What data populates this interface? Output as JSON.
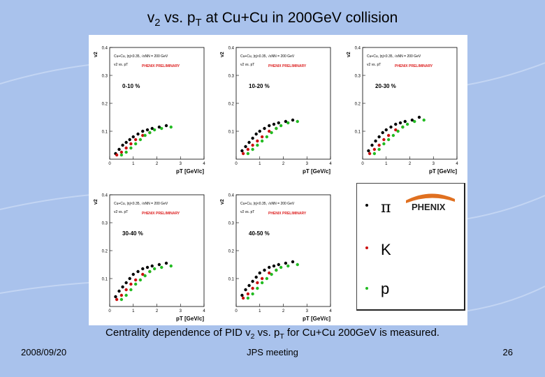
{
  "slide": {
    "title_main": "v",
    "title_sub": "2",
    "title_mid": " vs. p",
    "title_sub2": "T",
    "title_end": " at Cu+Cu in 200GeV collision",
    "caption_a": "Centrality dependence of PID v",
    "caption_sub1": "2",
    "caption_b": " vs. p",
    "caption_sub2": "T",
    "caption_c": " for Cu+Cu 200GeV is measured.",
    "date": "2008/09/20",
    "event": "JPS meeting",
    "page": "26"
  },
  "colors": {
    "pion": "#000000",
    "kaon": "#cc1111",
    "proton": "#22bb22",
    "prelim": "#dd2222"
  },
  "legend": {
    "logo": "PHENIX",
    "items": [
      {
        "label": "π",
        "color": "#000000"
      },
      {
        "label": "K",
        "color": "#cc1111"
      },
      {
        "label": "p",
        "color": "#22bb22"
      }
    ]
  },
  "plot_text": {
    "ylabel": "v2",
    "xlabel": "pT [GeV/c]",
    "line1": "Cu+Cu, |η|<0.35, √sNN = 200 GeV",
    "line2": "v2 vs. pT",
    "prelim": "PHENIX PRELIMINARY",
    "yticks": [
      "0.1",
      "0.2",
      "0.3",
      "0.4"
    ],
    "xticks": [
      "0",
      "1",
      "2",
      "3",
      "4"
    ]
  },
  "chart_data": [
    {
      "type": "scatter",
      "title": "0-10 %",
      "xlabel": "pT [GeV/c]",
      "ylabel": "v2",
      "xlim": [
        0,
        4
      ],
      "ylim": [
        0,
        0.4
      ],
      "series": [
        {
          "name": "π",
          "x": [
            0.25,
            0.4,
            0.55,
            0.7,
            0.85,
            1.0,
            1.2,
            1.4,
            1.6,
            1.8,
            2.1,
            2.4
          ],
          "y": [
            0.02,
            0.035,
            0.05,
            0.06,
            0.07,
            0.08,
            0.09,
            0.1,
            0.105,
            0.11,
            0.115,
            0.12
          ]
        },
        {
          "name": "K",
          "x": [
            0.3,
            0.5,
            0.7,
            0.9,
            1.1,
            1.4,
            1.7
          ],
          "y": [
            0.015,
            0.025,
            0.04,
            0.055,
            0.07,
            0.085,
            0.095
          ]
        },
        {
          "name": "p",
          "x": [
            0.5,
            0.7,
            0.9,
            1.1,
            1.3,
            1.5,
            1.7,
            1.9,
            2.2,
            2.6
          ],
          "y": [
            0.015,
            0.025,
            0.04,
            0.055,
            0.07,
            0.085,
            0.095,
            0.105,
            0.11,
            0.115
          ]
        }
      ]
    },
    {
      "type": "scatter",
      "title": "10-20 %",
      "xlabel": "pT [GeV/c]",
      "ylabel": "v2",
      "xlim": [
        0,
        4
      ],
      "ylim": [
        0,
        0.4
      ],
      "series": [
        {
          "name": "π",
          "x": [
            0.25,
            0.4,
            0.55,
            0.7,
            0.85,
            1.0,
            1.2,
            1.4,
            1.6,
            1.8,
            2.1,
            2.4
          ],
          "y": [
            0.03,
            0.045,
            0.06,
            0.075,
            0.09,
            0.1,
            0.11,
            0.12,
            0.125,
            0.13,
            0.135,
            0.14
          ]
        },
        {
          "name": "K",
          "x": [
            0.3,
            0.5,
            0.7,
            0.9,
            1.1,
            1.4,
            1.7
          ],
          "y": [
            0.02,
            0.035,
            0.05,
            0.065,
            0.08,
            0.1,
            0.11
          ]
        },
        {
          "name": "p",
          "x": [
            0.5,
            0.7,
            0.9,
            1.1,
            1.3,
            1.5,
            1.7,
            1.9,
            2.2,
            2.6
          ],
          "y": [
            0.02,
            0.035,
            0.05,
            0.065,
            0.08,
            0.095,
            0.11,
            0.12,
            0.13,
            0.135
          ]
        }
      ]
    },
    {
      "type": "scatter",
      "title": "20-30 %",
      "xlabel": "pT [GeV/c]",
      "ylabel": "v2",
      "xlim": [
        0,
        4
      ],
      "ylim": [
        0,
        0.4
      ],
      "series": [
        {
          "name": "π",
          "x": [
            0.25,
            0.4,
            0.55,
            0.7,
            0.85,
            1.0,
            1.2,
            1.4,
            1.6,
            1.8,
            2.1,
            2.4
          ],
          "y": [
            0.03,
            0.05,
            0.065,
            0.08,
            0.095,
            0.105,
            0.115,
            0.125,
            0.13,
            0.135,
            0.14,
            0.15
          ]
        },
        {
          "name": "K",
          "x": [
            0.3,
            0.5,
            0.7,
            0.9,
            1.1,
            1.4,
            1.7
          ],
          "y": [
            0.02,
            0.035,
            0.05,
            0.07,
            0.085,
            0.105,
            0.115
          ]
        },
        {
          "name": "p",
          "x": [
            0.5,
            0.7,
            0.9,
            1.1,
            1.3,
            1.5,
            1.7,
            1.9,
            2.2,
            2.6
          ],
          "y": [
            0.02,
            0.035,
            0.055,
            0.07,
            0.085,
            0.1,
            0.115,
            0.125,
            0.135,
            0.14
          ]
        }
      ]
    },
    {
      "type": "scatter",
      "title": "30-40 %",
      "xlabel": "pT [GeV/c]",
      "ylabel": "v2",
      "xlim": [
        0,
        4
      ],
      "ylim": [
        0,
        0.4
      ],
      "series": [
        {
          "name": "π",
          "x": [
            0.25,
            0.4,
            0.55,
            0.7,
            0.85,
            1.0,
            1.2,
            1.4,
            1.6,
            1.8,
            2.1,
            2.4
          ],
          "y": [
            0.035,
            0.055,
            0.07,
            0.085,
            0.1,
            0.115,
            0.125,
            0.135,
            0.14,
            0.145,
            0.15,
            0.155
          ]
        },
        {
          "name": "K",
          "x": [
            0.3,
            0.5,
            0.7,
            0.9,
            1.1,
            1.4,
            1.7
          ],
          "y": [
            0.025,
            0.04,
            0.06,
            0.08,
            0.095,
            0.115,
            0.125
          ]
        },
        {
          "name": "p",
          "x": [
            0.5,
            0.7,
            0.9,
            1.1,
            1.3,
            1.5,
            1.7,
            1.9,
            2.2,
            2.6
          ],
          "y": [
            0.025,
            0.04,
            0.06,
            0.08,
            0.095,
            0.11,
            0.125,
            0.135,
            0.14,
            0.145
          ]
        }
      ]
    },
    {
      "type": "scatter",
      "title": "40-50 %",
      "xlabel": "pT [GeV/c]",
      "ylabel": "v2",
      "xlim": [
        0,
        4
      ],
      "ylim": [
        0,
        0.4
      ],
      "series": [
        {
          "name": "π",
          "x": [
            0.25,
            0.4,
            0.55,
            0.7,
            0.85,
            1.0,
            1.2,
            1.4,
            1.6,
            1.8,
            2.1,
            2.4
          ],
          "y": [
            0.04,
            0.06,
            0.075,
            0.09,
            0.105,
            0.12,
            0.13,
            0.14,
            0.145,
            0.15,
            0.155,
            0.16
          ]
        },
        {
          "name": "K",
          "x": [
            0.3,
            0.5,
            0.7,
            0.9,
            1.1,
            1.4,
            1.7
          ],
          "y": [
            0.03,
            0.045,
            0.065,
            0.085,
            0.1,
            0.12,
            0.13
          ]
        },
        {
          "name": "p",
          "x": [
            0.5,
            0.7,
            0.9,
            1.1,
            1.3,
            1.5,
            1.7,
            1.9,
            2.2,
            2.6
          ],
          "y": [
            0.03,
            0.045,
            0.065,
            0.085,
            0.1,
            0.115,
            0.13,
            0.14,
            0.145,
            0.15
          ]
        }
      ]
    }
  ]
}
